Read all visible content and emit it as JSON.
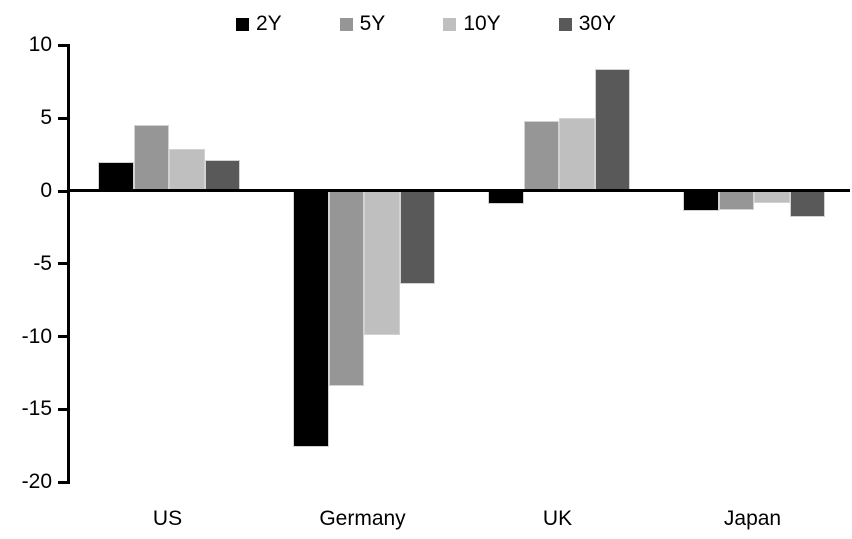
{
  "chart_data": {
    "type": "bar",
    "title": "",
    "categories": [
      "US",
      "Germany",
      "UK",
      "Japan"
    ],
    "series": [
      {
        "name": "2Y",
        "color": "#000000",
        "values": [
          2.0,
          -17.6,
          -0.9,
          -1.4
        ]
      },
      {
        "name": "5Y",
        "color": "#969696",
        "values": [
          4.5,
          -13.4,
          4.8,
          -1.3
        ]
      },
      {
        "name": "10Y",
        "color": "#bfbfbf",
        "values": [
          2.9,
          -9.9,
          5.0,
          -0.8
        ]
      },
      {
        "name": "30Y",
        "color": "#595959",
        "values": [
          2.1,
          -6.4,
          8.4,
          -1.8
        ]
      }
    ],
    "ylim": [
      -20,
      10
    ],
    "yticks": [
      10,
      5,
      0,
      -5,
      -10,
      -15,
      -20
    ],
    "legend_position": "top-center",
    "grid": false,
    "background_color": "#ffffff",
    "axis_color": "#000000",
    "text_color": "#000000"
  }
}
